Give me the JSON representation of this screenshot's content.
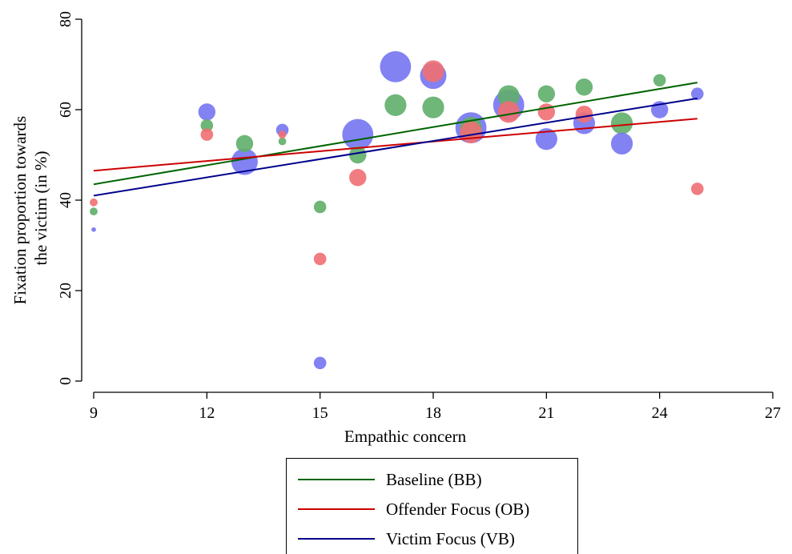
{
  "chart_data": {
    "type": "scatter",
    "xlabel": "Empathic concern",
    "ylabel": "Fixation proportion towards the victim (in %)",
    "ylabel_lines": [
      "Fixation proportion towards",
      "the victim (in %)"
    ],
    "xlim": [
      9,
      27
    ],
    "ylim": [
      0,
      80
    ],
    "xticks": [
      9,
      12,
      15,
      18,
      21,
      24,
      27
    ],
    "yticks": [
      0,
      20,
      40,
      60,
      80
    ],
    "grid": false,
    "legend_position": "bottom",
    "series": [
      {
        "name": "Baseline (BB)",
        "key": "BB",
        "point_color": "#5fae6a",
        "line_color": "#006400",
        "points": [
          {
            "x": 9,
            "y": 37.5,
            "size": 1
          },
          {
            "x": 12,
            "y": 56.5,
            "size": 2
          },
          {
            "x": 13,
            "y": 52.5,
            "size": 3
          },
          {
            "x": 14,
            "y": 53,
            "size": 1
          },
          {
            "x": 15,
            "y": 38.5,
            "size": 2
          },
          {
            "x": 16,
            "y": 50,
            "size": 3
          },
          {
            "x": 17,
            "y": 61,
            "size": 4
          },
          {
            "x": 18,
            "y": 60.5,
            "size": 4
          },
          {
            "x": 19,
            "y": 56,
            "size": 4
          },
          {
            "x": 20,
            "y": 63,
            "size": 4
          },
          {
            "x": 21,
            "y": 63.5,
            "size": 3
          },
          {
            "x": 22,
            "y": 65,
            "size": 3
          },
          {
            "x": 23,
            "y": 57,
            "size": 4
          },
          {
            "x": 24,
            "y": 66.5,
            "size": 2
          }
        ],
        "fit": {
          "x": [
            9,
            25
          ],
          "y": [
            43.5,
            66
          ]
        }
      },
      {
        "name": "Offender Focus (OB)",
        "key": "OB",
        "point_color": "#ef6f72",
        "line_color": "#cc0000",
        "points": [
          {
            "x": 9,
            "y": 39.5,
            "size": 1
          },
          {
            "x": 12,
            "y": 54.5,
            "size": 2
          },
          {
            "x": 14,
            "y": 54.5,
            "size": 1
          },
          {
            "x": 15,
            "y": 27,
            "size": 2
          },
          {
            "x": 16,
            "y": 45,
            "size": 3
          },
          {
            "x": 18,
            "y": 68.5,
            "size": 4
          },
          {
            "x": 19,
            "y": 55,
            "size": 4
          },
          {
            "x": 20,
            "y": 59.5,
            "size": 4
          },
          {
            "x": 21,
            "y": 59.5,
            "size": 3
          },
          {
            "x": 22,
            "y": 59,
            "size": 3
          },
          {
            "x": 25,
            "y": 42.5,
            "size": 2
          }
        ],
        "fit": {
          "x": [
            9,
            25
          ],
          "y": [
            46.5,
            58
          ]
        }
      },
      {
        "name": "Victim Focus (VB)",
        "key": "VB",
        "point_color": "#7474f2",
        "line_color": "#00008b",
        "points": [
          {
            "x": 9,
            "y": 33.5,
            "size": 0.3
          },
          {
            "x": 12,
            "y": 59.5,
            "size": 3
          },
          {
            "x": 13,
            "y": 48.5,
            "size": 5
          },
          {
            "x": 14,
            "y": 55.5,
            "size": 2
          },
          {
            "x": 15,
            "y": 4,
            "size": 2
          },
          {
            "x": 16,
            "y": 54.5,
            "size": 6
          },
          {
            "x": 17,
            "y": 69.5,
            "size": 6
          },
          {
            "x": 18,
            "y": 67.5,
            "size": 5
          },
          {
            "x": 19,
            "y": 56,
            "size": 6
          },
          {
            "x": 20,
            "y": 61,
            "size": 6
          },
          {
            "x": 21,
            "y": 53.5,
            "size": 4
          },
          {
            "x": 22,
            "y": 57,
            "size": 4
          },
          {
            "x": 23,
            "y": 52.5,
            "size": 4
          },
          {
            "x": 24,
            "y": 60,
            "size": 3
          },
          {
            "x": 25,
            "y": 63.5,
            "size": 2
          }
        ],
        "fit": {
          "x": [
            9,
            25
          ],
          "y": [
            41,
            62.5
          ]
        }
      }
    ]
  }
}
